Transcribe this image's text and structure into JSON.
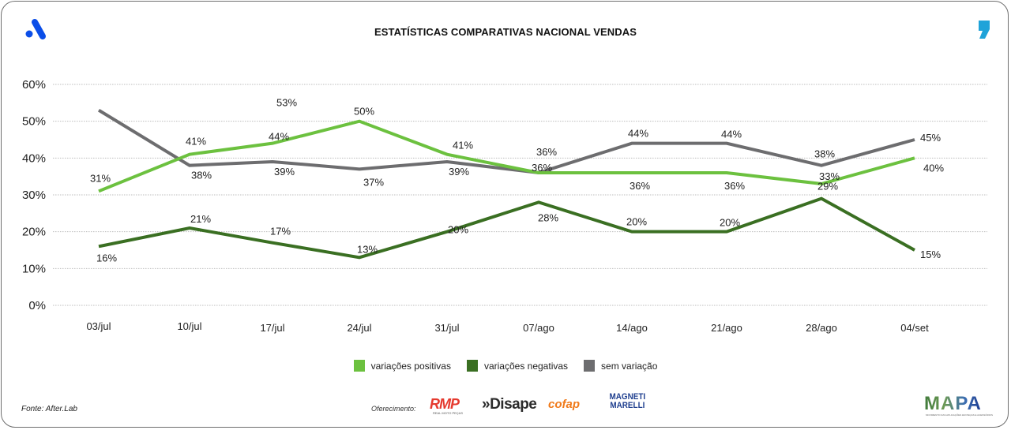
{
  "header": {
    "title": "ESTATÍSTICAS COMPARATIVAS NACIONAL VENDAS",
    "left_logo_icon": "afterlab-a-logo-icon",
    "right_logo_icon": "comma-logo-icon"
  },
  "colors": {
    "positive": "#6cc13f",
    "negative": "#3a6f22",
    "neutral": "#6d6d6f",
    "left_logo": "#0b4ee8",
    "right_logo": "#1fa3d9"
  },
  "chart_data": {
    "type": "line",
    "title": "ESTATÍSTICAS COMPARATIVAS NACIONAL VENDAS",
    "xlabel": "",
    "ylabel": "",
    "categories": [
      "03/jul",
      "10/jul",
      "17/jul",
      "24/jul",
      "31/jul",
      "07/ago",
      "14/ago",
      "21/ago",
      "28/ago",
      "04/set"
    ],
    "yticks": [
      "0%",
      "10%",
      "20%",
      "30%",
      "40%",
      "50%",
      "60%"
    ],
    "ylim": [
      0,
      60
    ],
    "grid": true,
    "legend_position": "bottom",
    "series": [
      {
        "name": "variações positivas",
        "color_key": "positive",
        "values": [
          31,
          41,
          44,
          50,
          41,
          36,
          36,
          36,
          33,
          40
        ],
        "labels": [
          "31%",
          "41%",
          "44%",
          "50%",
          "41%",
          "36%",
          "36%",
          "36%",
          "33%",
          "40%"
        ]
      },
      {
        "name": "variações negativas",
        "color_key": "negative",
        "values": [
          16,
          21,
          17,
          13,
          20,
          28,
          20,
          20,
          29,
          15
        ],
        "labels": [
          "16%",
          "21%",
          "17%",
          "13%",
          "20%",
          "28%",
          "20%",
          "20%",
          "29%",
          "15%"
        ]
      },
      {
        "name": "sem variação",
        "color_key": "neutral",
        "values": [
          53,
          38,
          39,
          37,
          39,
          36,
          44,
          44,
          38,
          45
        ],
        "labels": [
          "53%",
          "38%",
          "39%",
          "37%",
          "39%",
          "36%",
          "44%",
          "44%",
          "38%",
          "45%"
        ]
      }
    ]
  },
  "legend": [
    {
      "label": "variações positivas",
      "color_key": "positive"
    },
    {
      "label": "variações negativas",
      "color_key": "negative"
    },
    {
      "label": "sem variação",
      "color_key": "neutral"
    }
  ],
  "footer": {
    "source": "Fonte: After.Lab",
    "offer_label": "Oferecimento:",
    "sponsors": {
      "rmp": "RMP",
      "rmp_sub": "REAL MOTO PEÇAS",
      "disape": "»Disape",
      "cofap": "cofap",
      "magneti_line1": "MAGNETI",
      "magneti_line2": "MARELLI"
    },
    "mapa": "MAPA",
    "mapa_sub": "MOVIMENTO DAS APLICAÇÕES EM PEÇAS E ACESSÓRIOS"
  }
}
